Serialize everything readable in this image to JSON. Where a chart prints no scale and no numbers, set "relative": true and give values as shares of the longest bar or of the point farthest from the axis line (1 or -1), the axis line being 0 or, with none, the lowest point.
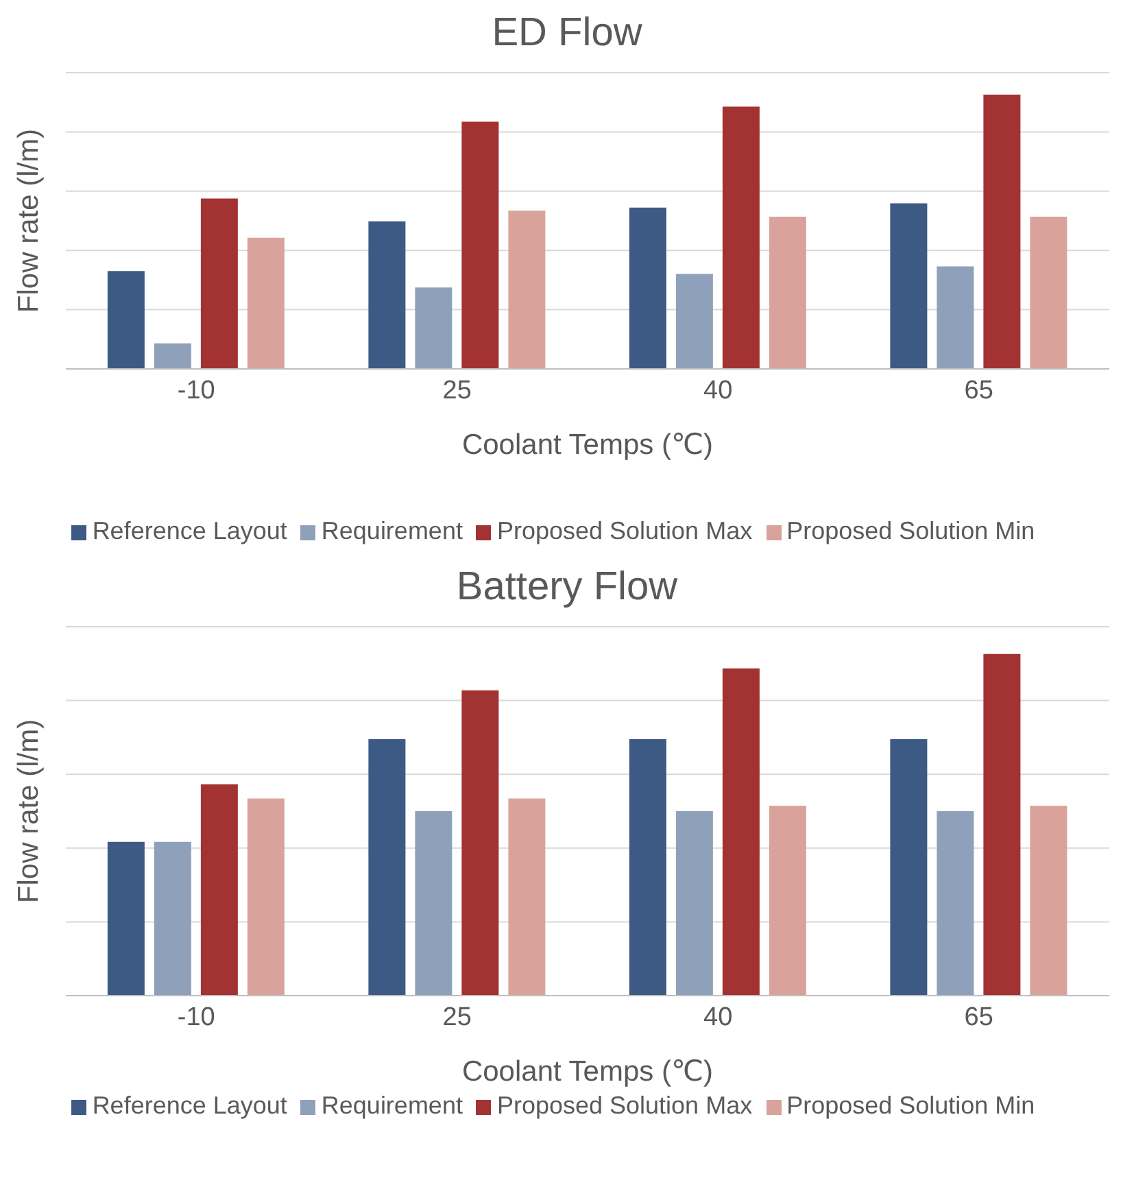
{
  "chart_data": [
    {
      "type": "bar",
      "title": "ED Flow",
      "xlabel": "Coolant Temps (℃)",
      "ylabel": "Flow rate (l/m)",
      "relative": true,
      "grid": "y",
      "legend": "bottom",
      "categories": [
        "-10",
        "25",
        "40",
        "65"
      ],
      "series": [
        {
          "name": "Reference Layout",
          "color": "#3d5a85",
          "values": [
            0.357,
            0.538,
            0.588,
            0.604
          ]
        },
        {
          "name": "Requirement",
          "color": "#8fa1ba",
          "values": [
            0.093,
            0.297,
            0.346,
            0.374
          ]
        },
        {
          "name": "Proposed Solution Max",
          "color": "#a33232",
          "values": [
            0.621,
            0.901,
            0.956,
            1
          ]
        },
        {
          "name": "Proposed Solution Min",
          "color": "#d9a39b",
          "values": [
            0.478,
            0.577,
            0.555,
            0.555
          ]
        }
      ]
    },
    {
      "type": "bar",
      "title": "Battery Flow",
      "xlabel": "Coolant Temps (℃)",
      "ylabel": "Flow rate (l/m)",
      "relative": true,
      "grid": "y",
      "legend": "bottom",
      "categories": [
        "-10",
        "25",
        "40",
        "65"
      ],
      "series": [
        {
          "name": "Reference Layout",
          "color": "#3d5a85",
          "values": [
            0.45,
            0.751,
            0.751,
            0.751
          ]
        },
        {
          "name": "Requirement",
          "color": "#8fa1ba",
          "values": [
            0.45,
            0.54,
            0.54,
            0.54
          ]
        },
        {
          "name": "Proposed Solution Max",
          "color": "#a33232",
          "values": [
            0.619,
            0.894,
            0.958,
            1
          ]
        },
        {
          "name": "Proposed Solution Min",
          "color": "#d9a39b",
          "values": [
            0.577,
            0.577,
            0.556,
            0.556
          ]
        }
      ]
    }
  ]
}
